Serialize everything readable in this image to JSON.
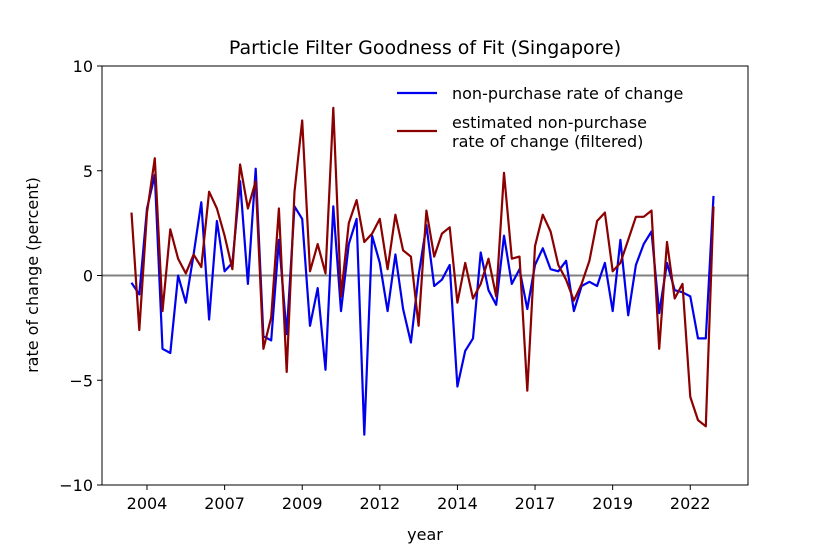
{
  "chart_data": {
    "type": "line",
    "title": "Particle Filter Goodness of Fit (Singapore)",
    "xlabel": "year",
    "ylabel": "rate of change (percent)",
    "x": [
      2004,
      2004.25,
      2004.5,
      2004.75,
      2005,
      2005.25,
      2005.5,
      2005.75,
      2006,
      2006.25,
      2006.5,
      2006.75,
      2007,
      2007.25,
      2007.5,
      2007.75,
      2008,
      2008.25,
      2008.5,
      2008.75,
      2009,
      2009.25,
      2009.5,
      2009.75,
      2010,
      2010.25,
      2010.5,
      2010.75,
      2011,
      2011.25,
      2011.5,
      2011.75,
      2012,
      2012.25,
      2012.5,
      2012.75,
      2013,
      2013.25,
      2013.5,
      2013.75,
      2014,
      2014.25,
      2014.5,
      2014.75,
      2015,
      2015.25,
      2015.5,
      2015.75,
      2016,
      2016.25,
      2016.5,
      2016.75,
      2017,
      2017.25,
      2017.5,
      2017.75,
      2018,
      2018.25,
      2018.5,
      2018.75,
      2019,
      2019.25,
      2019.5,
      2019.75,
      2020,
      2020.25,
      2020.5,
      2020.75,
      2021,
      2021.25,
      2021.5,
      2021.75,
      2022,
      2022.25,
      2022.5,
      2022.75
    ],
    "series": [
      {
        "name": "non-purchase rate of change",
        "color": "#0000ee",
        "values": [
          -0.35,
          -0.9,
          3.2,
          4.8,
          -3.5,
          -3.7,
          0,
          -1.3,
          1.0,
          3.5,
          -2.1,
          2.6,
          0.2,
          0.6,
          4.5,
          -0.4,
          5.1,
          -2.9,
          -3.1,
          1.7,
          -2.8,
          3.3,
          2.7,
          -2.4,
          -0.6,
          -4.5,
          3.3,
          -1.7,
          1.5,
          2.7,
          -7.6,
          1.9,
          0.6,
          -1.7,
          1.0,
          -1.6,
          -3.2,
          0,
          2.4,
          -0.5,
          -0.2,
          0.5,
          -5.3,
          -3.6,
          -3.0,
          1.1,
          -0.7,
          -1.4,
          1.9,
          -0.4,
          0.3,
          -1.6,
          0.5,
          1.3,
          0.3,
          0.2,
          0.7,
          -1.7,
          -0.5,
          -0.3,
          -0.5,
          0.6,
          -1.7,
          1.7,
          -1.9,
          0.5,
          1.5,
          2.1,
          -1.8,
          0.6,
          -0.7,
          -0.8,
          -1.0,
          -3.0,
          -3.0,
          3.8
        ]
      },
      {
        "name": "estimated non-purchase\nrate of change (filtered)",
        "color": "#8b0000",
        "values": [
          3.0,
          -2.6,
          3.0,
          5.6,
          -1.7,
          2.2,
          0.8,
          0.1,
          1.0,
          0.4,
          4.0,
          3.2,
          1.9,
          0.3,
          5.3,
          3.2,
          4.5,
          -3.5,
          -2.0,
          3.2,
          -4.6,
          4.0,
          7.4,
          0.2,
          1.5,
          0.1,
          8.0,
          -1.0,
          2.5,
          3.6,
          1.6,
          2.0,
          2.7,
          0.3,
          2.9,
          1.2,
          0.9,
          -2.4,
          3.1,
          0.9,
          2.0,
          2.3,
          -1.3,
          0.6,
          -1.1,
          -0.4,
          0.8,
          -1.0,
          4.9,
          0.8,
          0.9,
          -5.5,
          1.4,
          2.9,
          2.1,
          0.5,
          -0.2,
          -1.2,
          -0.4,
          0.7,
          2.6,
          3.0,
          0.2,
          0.6,
          1.7,
          2.8,
          2.8,
          3.1,
          -3.5,
          1.6,
          -1.1,
          -0.4,
          -5.8,
          -6.9,
          -7.2,
          3.3
        ]
      }
    ],
    "xlim": [
      2003.05,
      2023.86
    ],
    "xticks": [
      {
        "value": 2004.5,
        "label": "2004"
      },
      {
        "value": 2007,
        "label": "2007"
      },
      {
        "value": 2009.5,
        "label": "2009"
      },
      {
        "value": 2012,
        "label": "2012"
      },
      {
        "value": 2014.5,
        "label": "2014"
      },
      {
        "value": 2017,
        "label": "2017"
      },
      {
        "value": 2019.5,
        "label": "2019"
      },
      {
        "value": 2022,
        "label": "2022"
      }
    ],
    "ylim": [
      -10,
      10
    ],
    "yticks": [
      {
        "value": -10,
        "label": "−10"
      },
      {
        "value": -5,
        "label": "−5"
      },
      0,
      5,
      10
    ],
    "hline": 0,
    "hline_color": "#808080",
    "legend": "upper right"
  }
}
